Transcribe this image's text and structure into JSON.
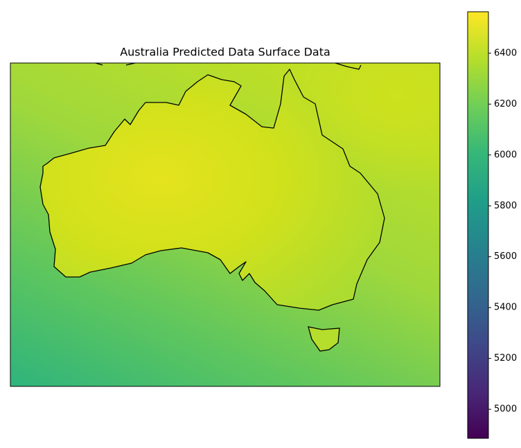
{
  "chart_data": {
    "type": "map",
    "title": "Australia Predicted Data Surface Data",
    "colormap": "viridis",
    "colorbar": {
      "lim": [
        4886,
        6563
      ],
      "ticks": [
        5000,
        5200,
        5400,
        5600,
        5800,
        6000,
        6200,
        6400
      ]
    }
  }
}
